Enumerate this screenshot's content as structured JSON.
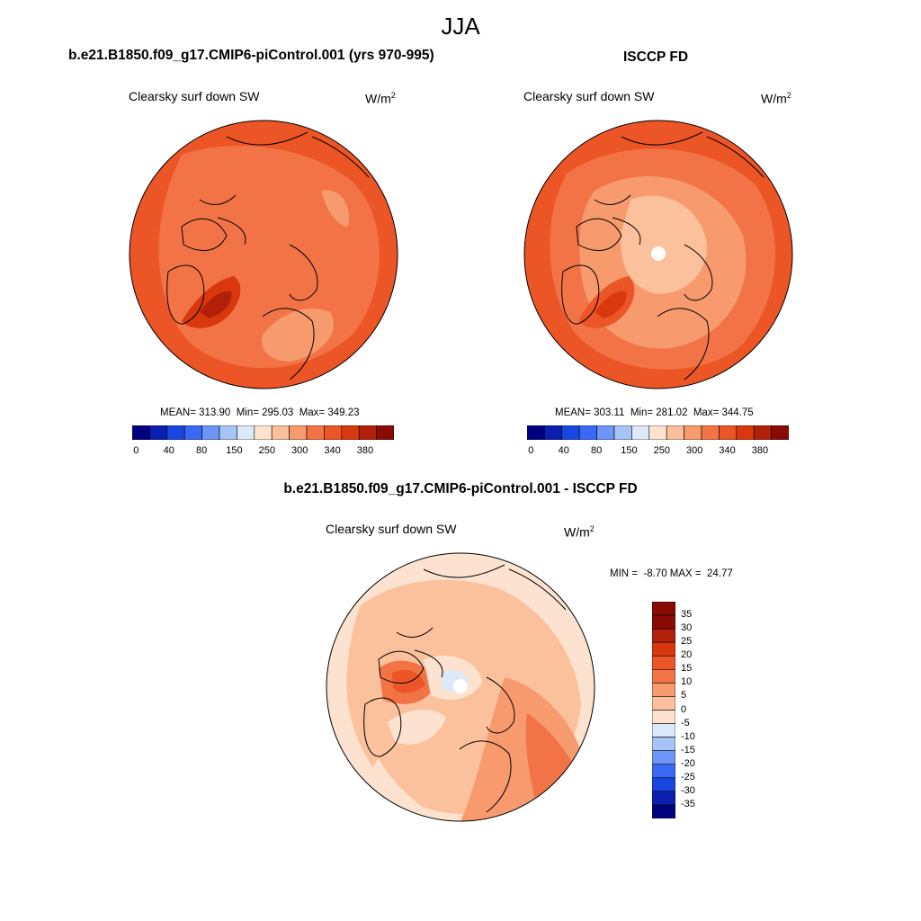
{
  "title": "JJA",
  "panels": [
    {
      "title": "b.e21.B1850.f09_g17.CMIP6-piControl.001 (yrs 970-995)",
      "variable": "Clearsky surf down SW",
      "units_base": "W/m",
      "units_exp": "2",
      "stats": "MEAN= 313.90  Min= 295.03  Max= 349.23"
    },
    {
      "title": "ISCCP FD",
      "variable": "Clearsky surf down SW",
      "units_base": "W/m",
      "units_exp": "2",
      "stats": "MEAN= 303.11  Min= 281.02  Max= 344.75"
    }
  ],
  "abs_colorbar": {
    "labels": [
      "0",
      "40",
      "80",
      "150",
      "250",
      "300",
      "340",
      "380"
    ],
    "colors": [
      "#00007f",
      "#0a1fb0",
      "#1846e0",
      "#3a6af5",
      "#6d95f7",
      "#a7c4f7",
      "#dce9f8",
      "#fde3cf",
      "#fbc19c",
      "#f79a6e",
      "#f27446",
      "#ec5526",
      "#d9380f",
      "#b3200a",
      "#8a0b04"
    ]
  },
  "diff": {
    "title": "b.e21.B1850.f09_g17.CMIP6-piControl.001 - ISCCP FD",
    "variable": "Clearsky surf down SW",
    "units_base": "W/m",
    "units_exp": "2",
    "stats": "MIN =  -8.70 MAX =  24.77",
    "colorbar_labels": [
      "35",
      "30",
      "25",
      "20",
      "15",
      "10",
      "5",
      "0",
      "-5",
      "-10",
      "-15",
      "-20",
      "-25",
      "-30",
      "-35"
    ],
    "colors": [
      "#8a0b04",
      "#b3200a",
      "#d9380f",
      "#ec5526",
      "#f27446",
      "#f79a6e",
      "#fbc19c",
      "#fde3cf",
      "#dce9f8",
      "#a7c4f7",
      "#6d95f7",
      "#3a6af5",
      "#1846e0",
      "#0a1fb0",
      "#00007f"
    ]
  }
}
